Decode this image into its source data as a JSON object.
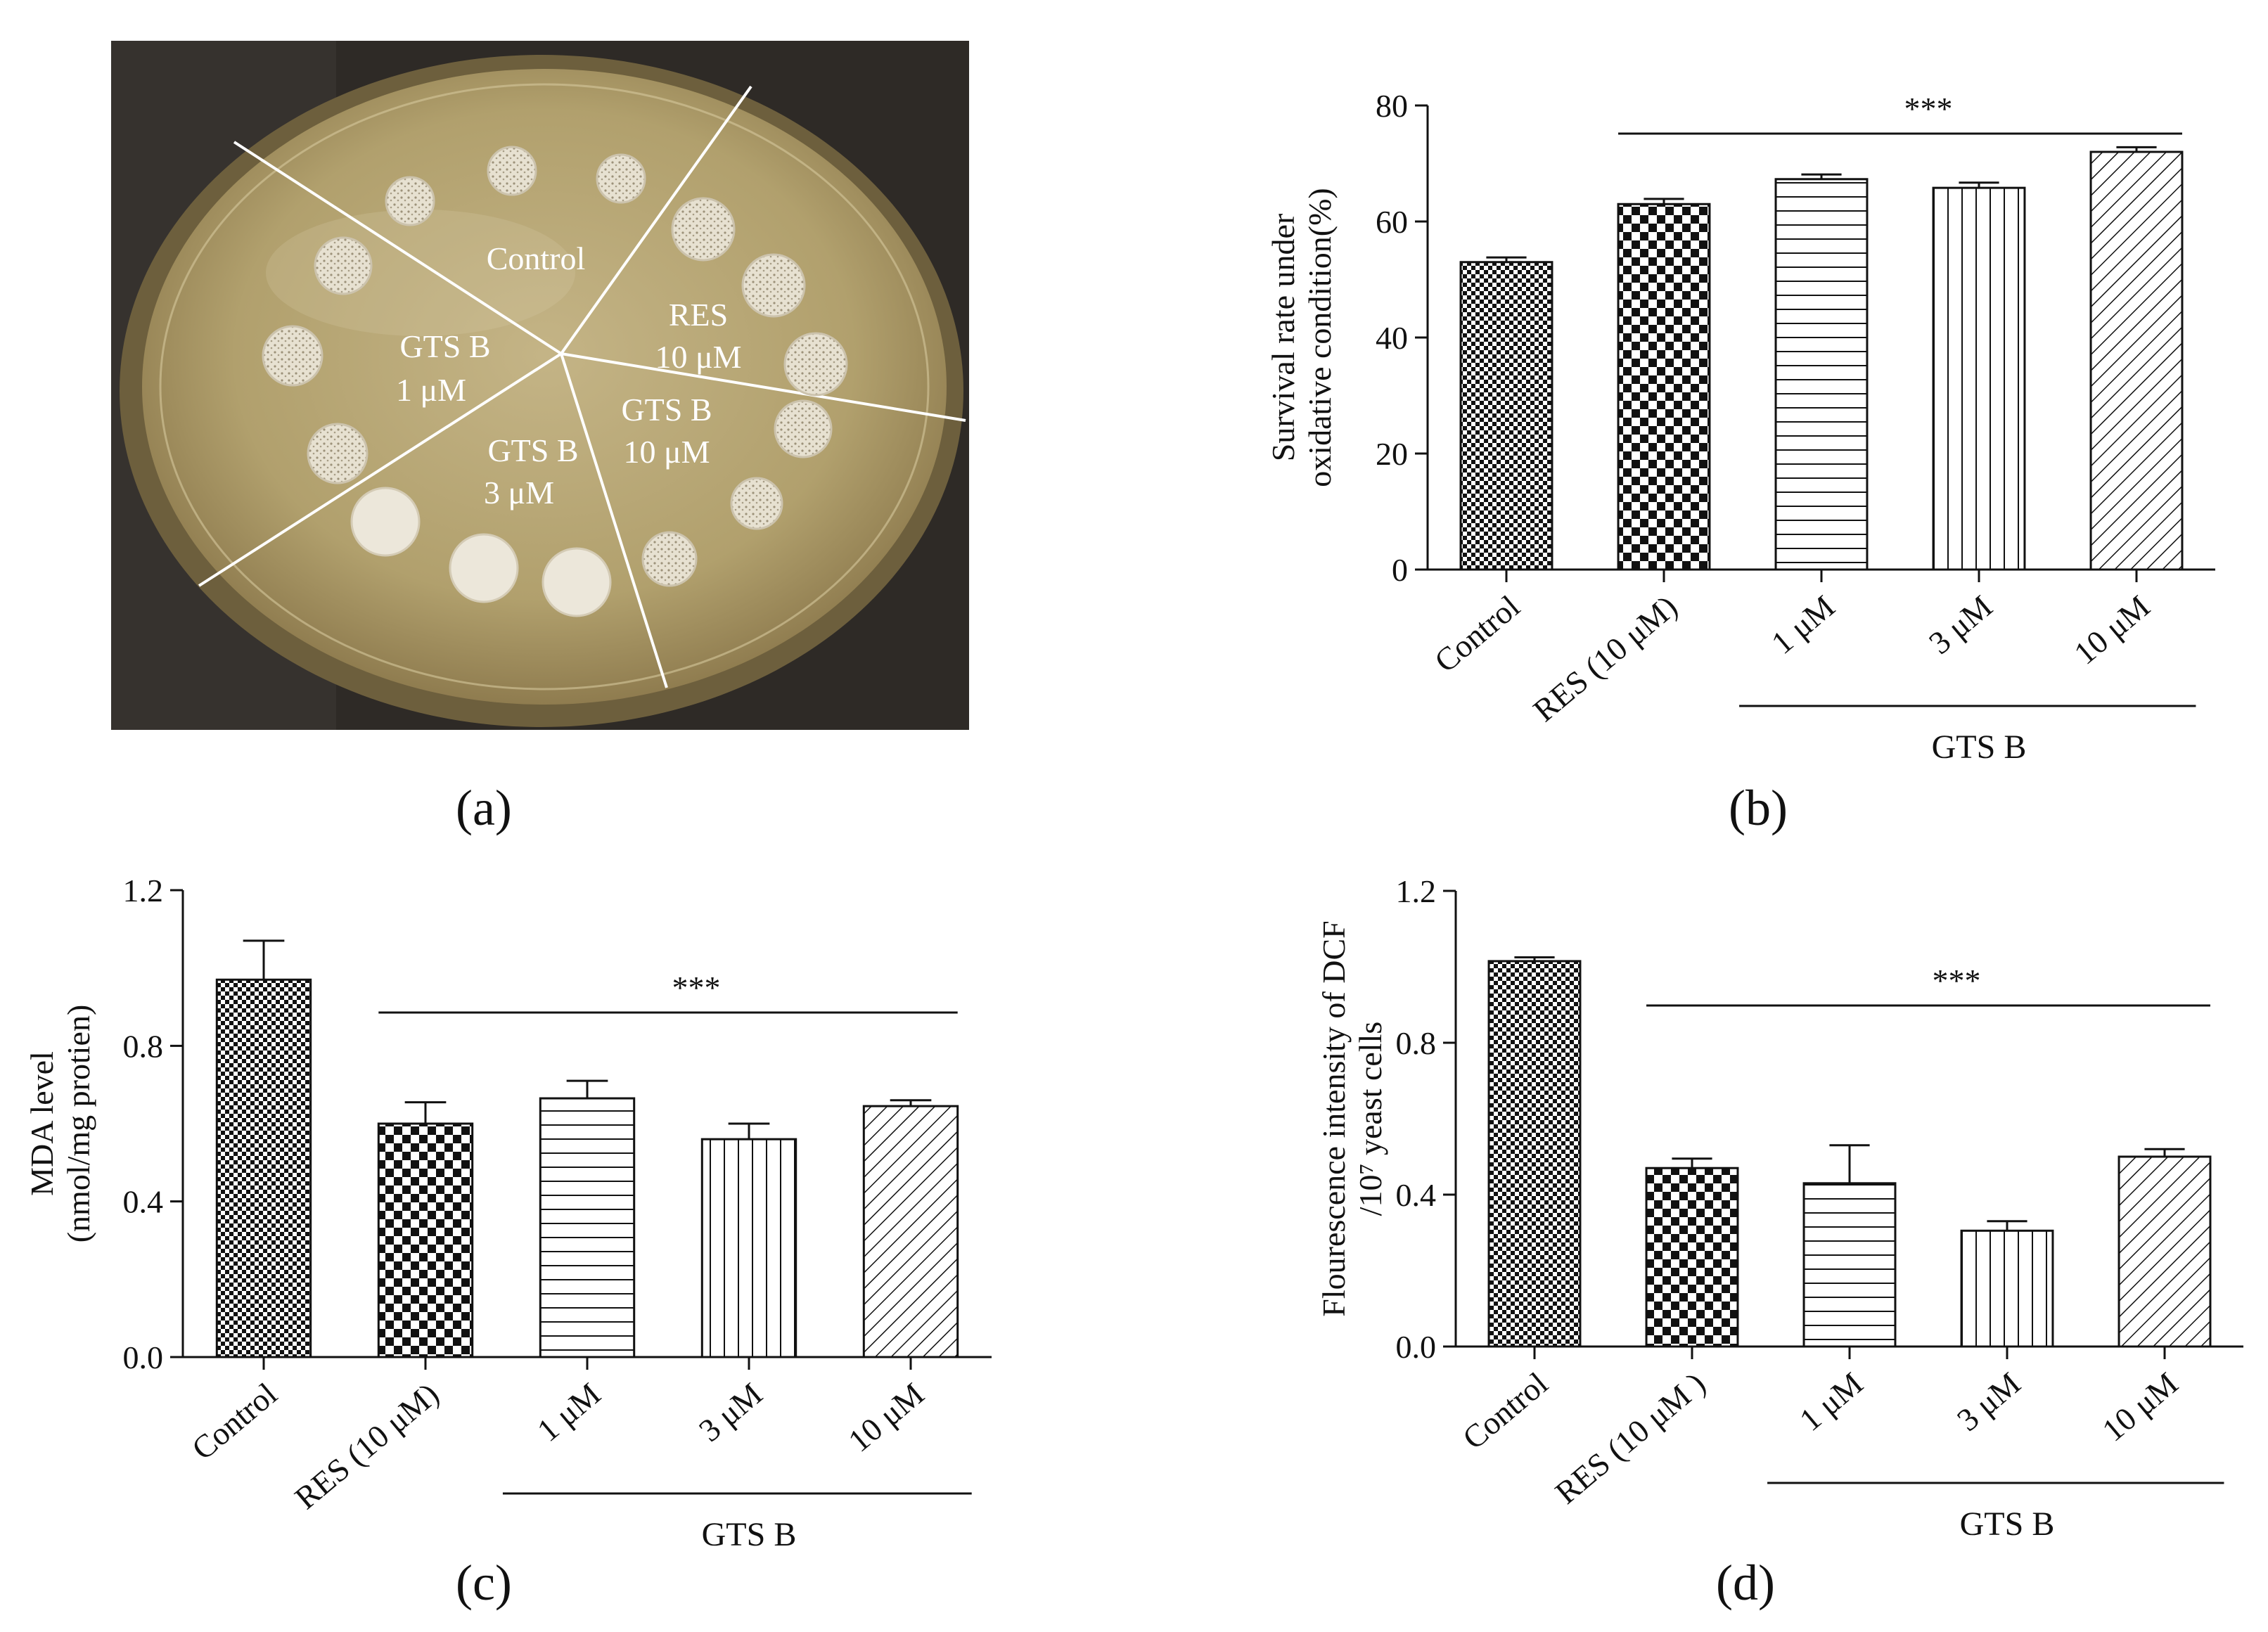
{
  "figure": {
    "panel_labels": [
      "(a)",
      "(b)",
      "(c)",
      "(d)"
    ]
  },
  "photo": {
    "sector_labels": [
      {
        "line1": "Control",
        "line2": ""
      },
      {
        "line1": "RES",
        "line2": "10 μM"
      },
      {
        "line1": "GTS B",
        "line2": "10 μM"
      },
      {
        "line1": "GTS B",
        "line2": "3 μM"
      },
      {
        "line1": "GTS B",
        "line2": "1 μM"
      }
    ]
  },
  "colors": {
    "bar_stroke": "#111111",
    "text": "#111111",
    "photo_bg": "#2e2a26",
    "agar": "#b7a671",
    "colony": "#e9e4d6"
  },
  "chart_data": [
    {
      "type": "bar",
      "panel": "(b)",
      "ylabel_lines": [
        "Survival rate under",
        "oxidative condition(%)"
      ],
      "categories": [
        "Control",
        "RES (10 μM)",
        "1 μM",
        "3 μM",
        "10 μM"
      ],
      "values": [
        53,
        63,
        67.3,
        65.8,
        72
      ],
      "errors": [
        0.8,
        0.9,
        0.8,
        0.9,
        0.8
      ],
      "patterns": [
        "checker-small",
        "checker-large",
        "horizontal",
        "vertical",
        "diagonal"
      ],
      "ylim": [
        0,
        80
      ],
      "ticks": [
        0,
        20,
        40,
        60,
        80
      ],
      "tick_labels": [
        "0",
        "20",
        "40",
        "60",
        "80"
      ],
      "significance": "***",
      "group_label": "GTS B"
    },
    {
      "type": "bar",
      "panel": "(c)",
      "ylabel_lines": [
        "MDA level",
        "(nmol/mg protien)"
      ],
      "categories": [
        "Control",
        "RES (10 μM)",
        "1 μM",
        "3 μM",
        "10 μM"
      ],
      "values": [
        0.97,
        0.6,
        0.665,
        0.56,
        0.645
      ],
      "errors": [
        0.1,
        0.055,
        0.045,
        0.04,
        0.015
      ],
      "patterns": [
        "checker-small",
        "checker-large",
        "horizontal",
        "vertical",
        "diagonal"
      ],
      "ylim": [
        0,
        1.2
      ],
      "ticks": [
        0,
        0.4,
        0.8,
        1.2
      ],
      "tick_labels": [
        "0.0",
        "0.4",
        "0.8",
        "1.2"
      ],
      "significance": "***",
      "group_label": "GTS B"
    },
    {
      "type": "bar",
      "panel": "(d)",
      "ylabel_lines": [
        "Flourescence intensity of DCF",
        "/10⁷ yeast cells"
      ],
      "categories": [
        "Control",
        "RES (10  μM )",
        "1 μM",
        "3 μM",
        "10 μM"
      ],
      "values": [
        1.015,
        0.47,
        0.43,
        0.305,
        0.5
      ],
      "errors": [
        0.01,
        0.025,
        0.1,
        0.025,
        0.02
      ],
      "patterns": [
        "checker-small",
        "checker-large",
        "horizontal",
        "vertical",
        "diagonal"
      ],
      "ylim": [
        0,
        1.2
      ],
      "ticks": [
        0,
        0.4,
        0.8,
        1.2
      ],
      "tick_labels": [
        "0.0",
        "0.4",
        "0.8",
        "1.2"
      ],
      "significance": "***",
      "group_label": "GTS B"
    }
  ]
}
